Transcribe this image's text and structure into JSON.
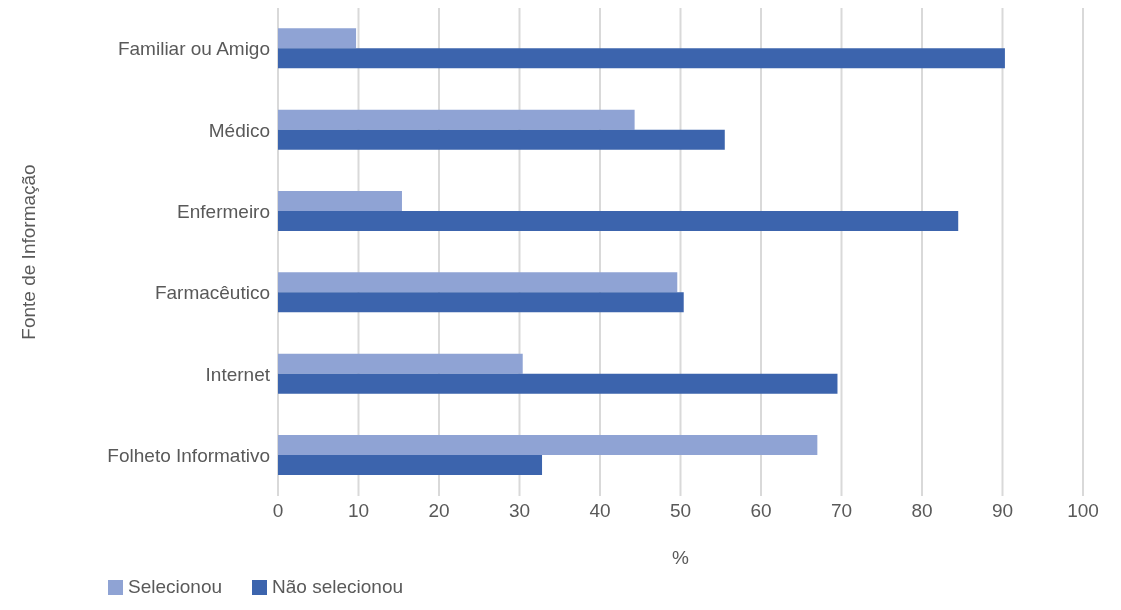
{
  "chart_data": {
    "type": "bar",
    "orientation": "horizontal",
    "xlabel": "%",
    "ylabel": "Fonte de Informação",
    "categories": [
      "Familiar ou Amigo",
      "Médico",
      "Enfermeiro",
      "Farmacêutico",
      "Internet",
      "Folheto Informativo"
    ],
    "series": [
      {
        "name": "Selecionou",
        "color": "#8fa3d4",
        "values": [
          9.7,
          44.3,
          15.4,
          49.6,
          30.4,
          67.0
        ]
      },
      {
        "name": "Não selecionou",
        "color": "#3c64ad",
        "values": [
          90.3,
          55.5,
          84.5,
          50.4,
          69.5,
          32.8
        ]
      }
    ],
    "xlim": [
      0,
      100
    ],
    "xticks": [
      0,
      10,
      20,
      30,
      40,
      50,
      60,
      70,
      80,
      90,
      100
    ],
    "grid": "x",
    "legend": "bottom left"
  }
}
